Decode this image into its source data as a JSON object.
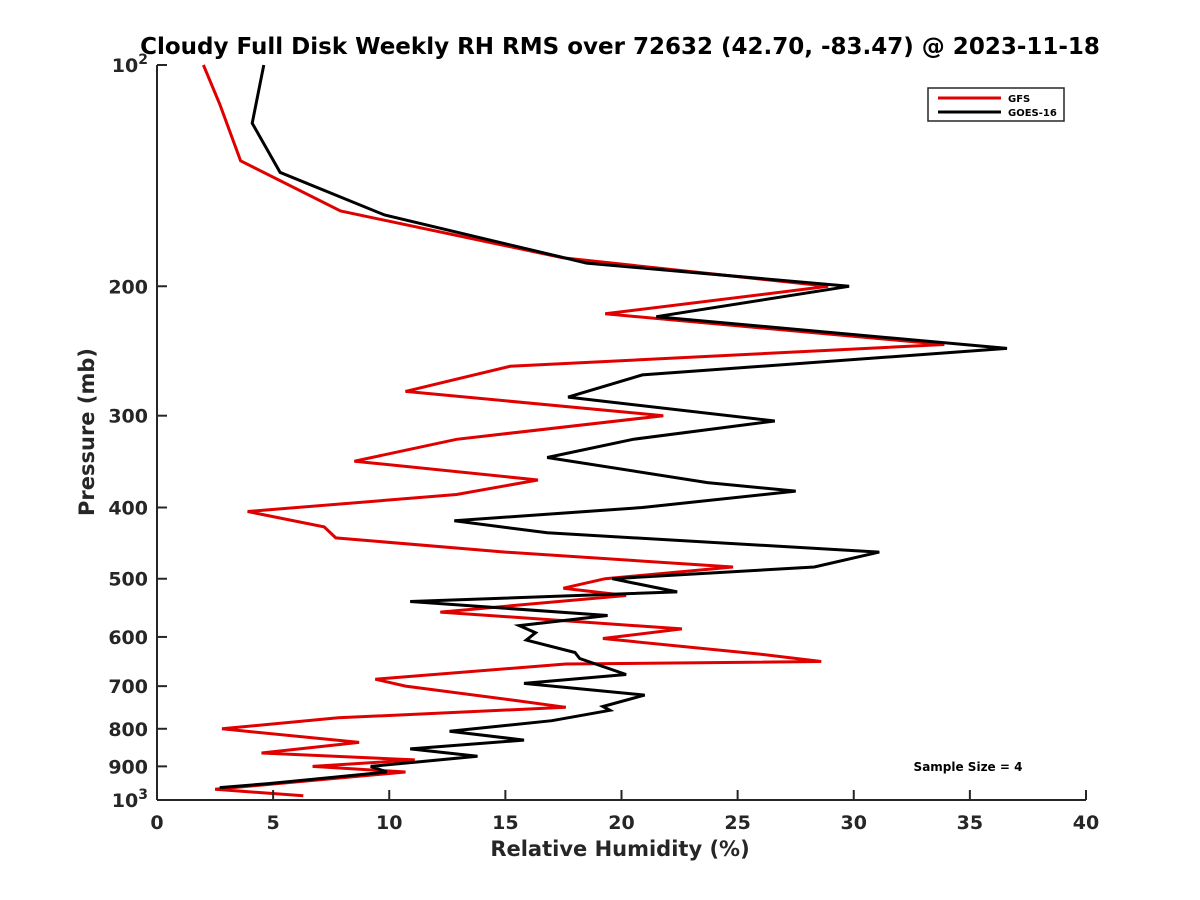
{
  "chart_data": {
    "type": "line",
    "title": "Cloudy Full Disk Weekly RH RMS over 72632 (42.70, -83.47) @ 2023-11-18",
    "xlabel": "Relative Humidity (%)",
    "ylabel": "Pressure (mb)",
    "xlim": [
      0,
      40
    ],
    "ylim": [
      100,
      1000
    ],
    "yscale": "log",
    "y_reversed": true,
    "grid": false,
    "legend_position": "top-right",
    "x_ticks": [
      "0",
      "5",
      "10",
      "15",
      "20",
      "25",
      "30",
      "35",
      "40"
    ],
    "y_ticks": [
      {
        "value": 100,
        "label": "10",
        "sup": "2"
      },
      {
        "value": 200,
        "label": "200"
      },
      {
        "value": 300,
        "label": "300"
      },
      {
        "value": 400,
        "label": "400"
      },
      {
        "value": 500,
        "label": "500"
      },
      {
        "value": 600,
        "label": "600"
      },
      {
        "value": 700,
        "label": "700"
      },
      {
        "value": 800,
        "label": "800"
      },
      {
        "value": 900,
        "label": "900"
      },
      {
        "value": 1000,
        "label": "10",
        "sup": "3"
      }
    ],
    "annotation": "Sample Size = 4",
    "series": [
      {
        "name": "GFS",
        "color": "#e00000",
        "points": [
          [
            2.0,
            100
          ],
          [
            2.7,
            113
          ],
          [
            3.6,
            135
          ],
          [
            7.9,
            158
          ],
          [
            17.5,
            183
          ],
          [
            28.9,
            200
          ],
          [
            19.3,
            218
          ],
          [
            33.9,
            240
          ],
          [
            15.2,
            257
          ],
          [
            10.7,
            278
          ],
          [
            21.8,
            300
          ],
          [
            12.9,
            323
          ],
          [
            8.5,
            346
          ],
          [
            16.4,
            367
          ],
          [
            12.9,
            384
          ],
          [
            3.9,
            405
          ],
          [
            7.2,
            425
          ],
          [
            7.7,
            440
          ],
          [
            15.0,
            460
          ],
          [
            24.8,
            482
          ],
          [
            19.3,
            500
          ],
          [
            17.5,
            515
          ],
          [
            20.2,
            527
          ],
          [
            12.2,
            555
          ],
          [
            22.6,
            585
          ],
          [
            19.2,
            603
          ],
          [
            25.9,
            633
          ],
          [
            28.6,
            648
          ],
          [
            17.6,
            653
          ],
          [
            9.4,
            685
          ],
          [
            10.7,
            700
          ],
          [
            15.4,
            732
          ],
          [
            17.6,
            748
          ],
          [
            7.8,
            773
          ],
          [
            2.8,
            800
          ],
          [
            8.7,
            835
          ],
          [
            4.5,
            863
          ],
          [
            11.1,
            882
          ],
          [
            6.7,
            900
          ],
          [
            10.7,
            916
          ],
          [
            2.5,
            967
          ],
          [
            6.3,
            987
          ]
        ]
      },
      {
        "name": "GOES-16",
        "color": "#000000",
        "points": [
          [
            4.6,
            100
          ],
          [
            4.1,
            120
          ],
          [
            5.3,
            140
          ],
          [
            9.8,
            160
          ],
          [
            18.5,
            186
          ],
          [
            29.8,
            200
          ],
          [
            21.5,
            220
          ],
          [
            36.6,
            243
          ],
          [
            20.9,
            264
          ],
          [
            17.7,
            283
          ],
          [
            26.6,
            305
          ],
          [
            20.5,
            323
          ],
          [
            16.8,
            342
          ],
          [
            23.7,
            370
          ],
          [
            27.5,
            380
          ],
          [
            20.9,
            400
          ],
          [
            12.8,
            417
          ],
          [
            16.8,
            433
          ],
          [
            31.1,
            460
          ],
          [
            28.3,
            482
          ],
          [
            19.6,
            500
          ],
          [
            22.4,
            521
          ],
          [
            10.9,
            537
          ],
          [
            19.4,
            561
          ],
          [
            15.6,
            579
          ],
          [
            16.3,
            592
          ],
          [
            15.9,
            606
          ],
          [
            18.0,
            630
          ],
          [
            18.2,
            642
          ],
          [
            20.2,
            675
          ],
          [
            15.8,
            694
          ],
          [
            21.0,
            720
          ],
          [
            19.2,
            746
          ],
          [
            19.5,
            755
          ],
          [
            17.0,
            780
          ],
          [
            12.6,
            806
          ],
          [
            15.8,
            829
          ],
          [
            10.9,
            852
          ],
          [
            13.8,
            872
          ],
          [
            9.2,
            900
          ],
          [
            9.9,
            916
          ],
          [
            4.8,
            950
          ],
          [
            2.7,
            962
          ]
        ]
      }
    ]
  }
}
